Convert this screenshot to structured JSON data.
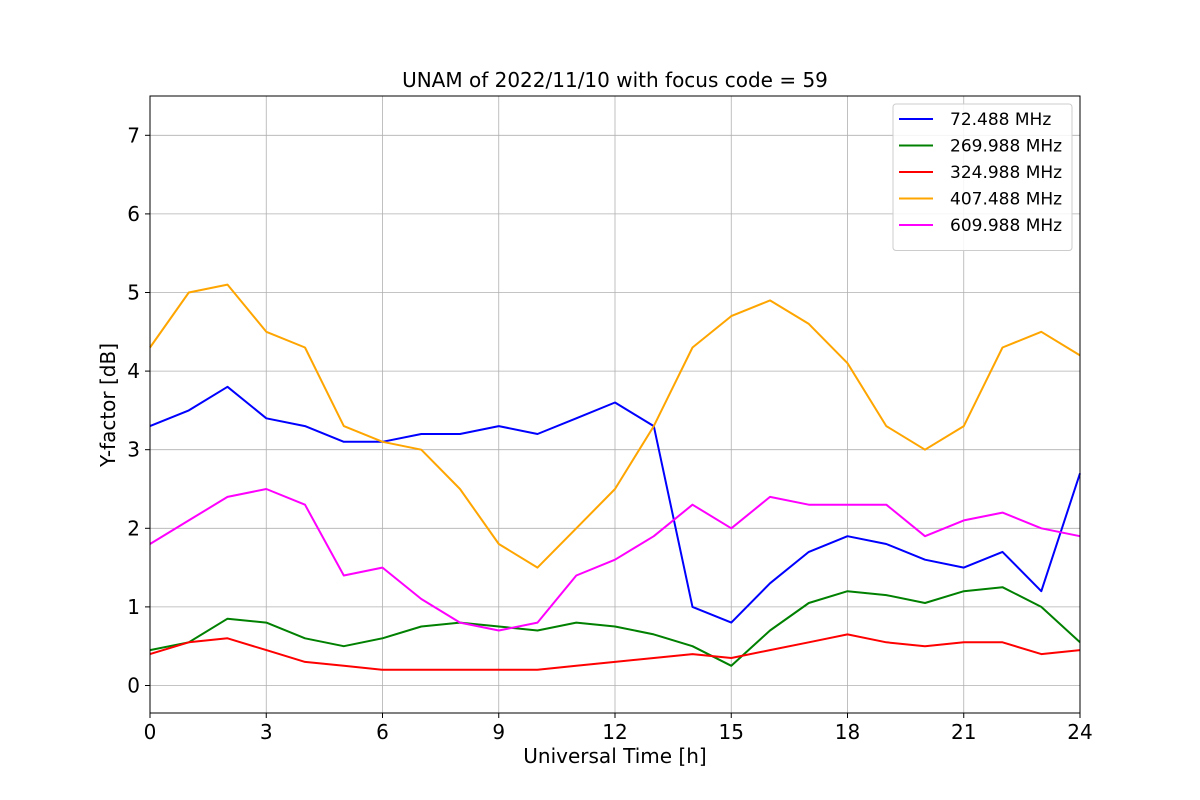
{
  "chart_data": {
    "type": "line",
    "title": "UNAM of 2022/11/10 with focus code = 59",
    "xlabel": "Universal Time [h]",
    "ylabel": "Y-factor [dB]",
    "xlim": [
      0,
      24
    ],
    "ylim": [
      -0.35,
      7.5
    ],
    "xticks": [
      0,
      3,
      6,
      9,
      12,
      15,
      18,
      21,
      24
    ],
    "yticks": [
      0,
      1,
      2,
      3,
      4,
      5,
      6,
      7
    ],
    "grid": true,
    "legend_position": "top-right",
    "x": [
      0,
      1,
      2,
      3,
      4,
      5,
      6,
      7,
      8,
      9,
      10,
      11,
      12,
      13,
      14,
      15,
      16,
      17,
      18,
      19,
      20,
      21,
      22,
      23,
      24
    ],
    "series": [
      {
        "name": " 72.488 MHz",
        "color": "#0000ff",
        "values": [
          3.3,
          3.5,
          3.8,
          3.4,
          3.3,
          3.1,
          3.1,
          3.2,
          3.2,
          3.3,
          3.2,
          3.4,
          3.6,
          3.3,
          1.0,
          0.8,
          1.3,
          1.7,
          1.9,
          1.8,
          1.6,
          1.5,
          1.7,
          1.2,
          2.7
        ]
      },
      {
        "name": "269.988 MHz",
        "color": "#008000",
        "values": [
          0.45,
          0.55,
          0.85,
          0.8,
          0.6,
          0.5,
          0.6,
          0.75,
          0.8,
          0.75,
          0.7,
          0.8,
          0.75,
          0.65,
          0.5,
          0.25,
          0.7,
          1.05,
          1.2,
          1.15,
          1.05,
          1.2,
          1.25,
          1.0,
          0.55
        ]
      },
      {
        "name": "324.988 MHz",
        "color": "#ff0000",
        "values": [
          0.4,
          0.55,
          0.6,
          0.45,
          0.3,
          0.25,
          0.2,
          0.2,
          0.2,
          0.2,
          0.2,
          0.25,
          0.3,
          0.35,
          0.4,
          0.35,
          0.45,
          0.55,
          0.65,
          0.55,
          0.5,
          0.55,
          0.55,
          0.4,
          0.45
        ]
      },
      {
        "name": "407.488 MHz",
        "color": "#ffa500",
        "values": [
          4.3,
          5.0,
          5.1,
          4.5,
          4.3,
          3.3,
          3.1,
          3.0,
          2.5,
          1.8,
          1.5,
          2.0,
          2.5,
          3.3,
          4.3,
          4.7,
          4.9,
          4.6,
          4.1,
          3.3,
          3.0,
          3.3,
          4.3,
          4.5,
          4.2
        ]
      },
      {
        "name": "609.988 MHz",
        "color": "#ff00ff",
        "values": [
          1.8,
          2.1,
          2.4,
          2.5,
          2.3,
          1.4,
          1.5,
          1.1,
          0.8,
          0.7,
          0.8,
          1.4,
          1.6,
          1.9,
          2.3,
          2.0,
          2.4,
          2.3,
          2.3,
          2.3,
          1.9,
          2.1,
          2.2,
          2.0,
          1.9
        ]
      }
    ]
  }
}
